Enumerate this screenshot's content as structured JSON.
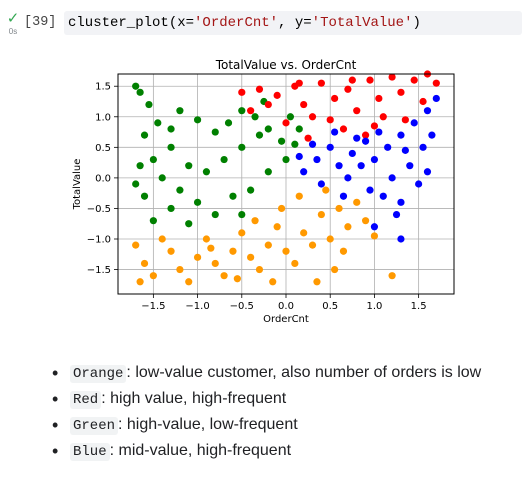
{
  "cell": {
    "execution_count": "[39]",
    "duration": "0s",
    "code": {
      "func": "cluster_plot(",
      "arg1_name": "x=",
      "arg1_val": "'OrderCnt'",
      "sep": ", ",
      "arg2_name": "y=",
      "arg2_val": "'TotalValue'",
      "close": ")"
    }
  },
  "chart_data": {
    "type": "scatter",
    "title": "TotalValue vs. OrderCnt",
    "xlabel": "OrderCnt",
    "ylabel": "TotalValue",
    "xlim": [
      -1.9,
      1.9
    ],
    "ylim": [
      -1.9,
      1.7
    ],
    "xticks": [
      -1.5,
      -1.0,
      -0.5,
      0.0,
      0.5,
      1.0,
      1.5
    ],
    "xtick_labels": [
      "−1.5",
      "−1.0",
      "−0.5",
      "0.0",
      "0.5",
      "1.0",
      "1.5"
    ],
    "yticks": [
      1.5,
      1.0,
      0.5,
      0.0,
      -0.5,
      -1.0,
      -1.5
    ],
    "ytick_labels": [
      "1.5",
      "1.0",
      "0.5",
      "0.0",
      "−0.5",
      "−1.0",
      "−1.5"
    ],
    "grid": true,
    "series": [
      {
        "color": "#008000",
        "points": [
          [
            -1.7,
            1.5
          ],
          [
            -1.65,
            1.4
          ],
          [
            -1.55,
            1.2
          ],
          [
            -1.45,
            0.9
          ],
          [
            -1.6,
            0.7
          ],
          [
            -1.2,
            1.1
          ],
          [
            -1.0,
            0.95
          ],
          [
            -0.8,
            0.75
          ],
          [
            -0.65,
            0.9
          ],
          [
            -0.5,
            1.1
          ],
          [
            -0.35,
            1.0
          ],
          [
            -0.2,
            0.8
          ],
          [
            -0.05,
            0.6
          ],
          [
            0.1,
            0.55
          ],
          [
            -1.3,
            0.5
          ],
          [
            -1.5,
            0.3
          ],
          [
            -1.1,
            0.2
          ],
          [
            -0.9,
            0.1
          ],
          [
            -1.7,
            -0.1
          ],
          [
            -1.6,
            -0.3
          ],
          [
            -1.3,
            -0.5
          ],
          [
            -1.0,
            -0.4
          ],
          [
            -0.8,
            -0.6
          ],
          [
            -0.6,
            -0.3
          ],
          [
            -0.4,
            -0.2
          ],
          [
            -0.2,
            0.1
          ],
          [
            0.0,
            0.3
          ],
          [
            -1.4,
            0.0
          ],
          [
            -1.2,
            -0.2
          ],
          [
            -0.5,
            0.5
          ],
          [
            -0.7,
            0.3
          ],
          [
            -1.65,
            0.2
          ],
          [
            -0.3,
            0.7
          ],
          [
            0.15,
            0.8
          ],
          [
            0.05,
            1.0
          ],
          [
            -0.25,
            1.25
          ],
          [
            -0.5,
            -0.6
          ],
          [
            -1.5,
            -0.7
          ],
          [
            -1.1,
            -0.75
          ],
          [
            -1.3,
            0.8
          ]
        ]
      },
      {
        "color": "#ff0000",
        "points": [
          [
            -0.5,
            1.4
          ],
          [
            -0.3,
            1.45
          ],
          [
            -0.1,
            1.35
          ],
          [
            0.1,
            1.5
          ],
          [
            0.2,
            1.2
          ],
          [
            0.4,
            1.55
          ],
          [
            0.3,
            1.0
          ],
          [
            0.55,
            1.3
          ],
          [
            0.7,
            1.45
          ],
          [
            0.8,
            1.1
          ],
          [
            0.95,
            1.6
          ],
          [
            1.05,
            1.3
          ],
          [
            1.2,
            1.65
          ],
          [
            1.3,
            1.4
          ],
          [
            1.45,
            1.6
          ],
          [
            1.6,
            1.7
          ],
          [
            1.7,
            1.55
          ],
          [
            0.5,
            0.95
          ],
          [
            0.65,
            0.8
          ],
          [
            0.9,
            0.7
          ],
          [
            1.1,
            1.0
          ],
          [
            1.35,
            0.95
          ],
          [
            0.0,
            0.9
          ],
          [
            -0.4,
            1.1
          ],
          [
            0.25,
            0.65
          ],
          [
            0.75,
            1.6
          ],
          [
            1.55,
            1.25
          ],
          [
            0.15,
            1.55
          ],
          [
            -0.2,
            1.2
          ],
          [
            1.0,
            0.85
          ]
        ]
      },
      {
        "color": "#0000ff",
        "points": [
          [
            0.2,
            0.1
          ],
          [
            0.35,
            0.3
          ],
          [
            0.5,
            0.5
          ],
          [
            0.6,
            0.2
          ],
          [
            0.75,
            0.4
          ],
          [
            0.9,
            0.6
          ],
          [
            1.0,
            0.3
          ],
          [
            1.15,
            0.5
          ],
          [
            1.3,
            0.7
          ],
          [
            1.45,
            0.9
          ],
          [
            1.6,
            1.1
          ],
          [
            1.7,
            1.3
          ],
          [
            0.4,
            -0.1
          ],
          [
            0.7,
            0.0
          ],
          [
            0.95,
            -0.2
          ],
          [
            1.2,
            0.0
          ],
          [
            1.4,
            0.2
          ],
          [
            1.55,
            0.5
          ],
          [
            1.65,
            0.7
          ],
          [
            0.3,
            0.55
          ],
          [
            0.55,
            0.75
          ],
          [
            0.85,
            0.2
          ],
          [
            1.1,
            -0.3
          ],
          [
            1.3,
            -0.4
          ],
          [
            1.05,
            0.75
          ],
          [
            0.15,
            0.35
          ],
          [
            1.5,
            -0.1
          ],
          [
            1.25,
            -0.6
          ],
          [
            1.35,
            0.45
          ],
          [
            0.65,
            -0.3
          ],
          [
            1.0,
            -0.8
          ],
          [
            1.3,
            -1.0
          ],
          [
            1.6,
            0.1
          ],
          [
            0.8,
            0.65
          ]
        ]
      },
      {
        "color": "#ff9900",
        "points": [
          [
            -1.7,
            -1.1
          ],
          [
            -1.6,
            -1.4
          ],
          [
            -1.5,
            -1.6
          ],
          [
            -1.3,
            -1.2
          ],
          [
            -1.2,
            -1.5
          ],
          [
            -1.1,
            -1.7
          ],
          [
            -1.0,
            -1.3
          ],
          [
            -0.9,
            -1.0
          ],
          [
            -0.8,
            -1.4
          ],
          [
            -0.7,
            -1.6
          ],
          [
            -0.6,
            -1.2
          ],
          [
            -0.5,
            -0.9
          ],
          [
            -0.4,
            -1.3
          ],
          [
            -0.3,
            -1.5
          ],
          [
            -0.2,
            -1.1
          ],
          [
            -0.1,
            -0.8
          ],
          [
            0.0,
            -1.2
          ],
          [
            0.1,
            -1.4
          ],
          [
            0.2,
            -0.9
          ],
          [
            0.3,
            -1.1
          ],
          [
            0.4,
            -0.6
          ],
          [
            0.5,
            -1.0
          ],
          [
            0.6,
            -0.5
          ],
          [
            0.7,
            -0.8
          ],
          [
            0.8,
            -0.4
          ],
          [
            0.9,
            -0.7
          ],
          [
            0.55,
            -1.5
          ],
          [
            0.35,
            -1.7
          ],
          [
            -0.05,
            -0.5
          ],
          [
            -0.35,
            -0.7
          ],
          [
            -1.4,
            -1.0
          ],
          [
            -1.65,
            -1.7
          ],
          [
            -0.15,
            -1.7
          ],
          [
            0.15,
            -0.3
          ],
          [
            0.45,
            -0.2
          ],
          [
            0.65,
            -1.2
          ],
          [
            1.0,
            -0.95
          ],
          [
            1.2,
            -1.6
          ],
          [
            -0.55,
            -1.65
          ],
          [
            -0.85,
            -1.15
          ]
        ]
      }
    ]
  },
  "notes": [
    {
      "key": "Orange",
      "text": ": low-value customer, also number of orders is low"
    },
    {
      "key": "Red",
      "text": ": high value, high-frequent"
    },
    {
      "key": "Green",
      "text": ": high-value, low-frequent"
    },
    {
      "key": "Blue",
      "text": ": mid-value, high-frequent"
    }
  ]
}
